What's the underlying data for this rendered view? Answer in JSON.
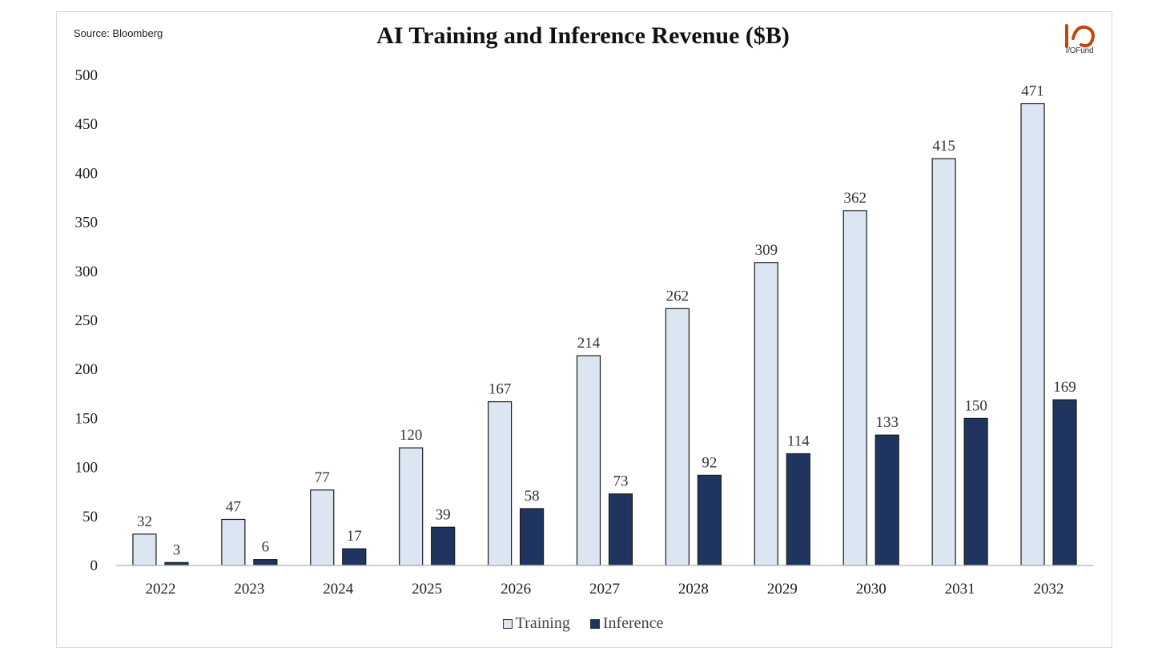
{
  "source": "Source: Bloomberg",
  "logo": {
    "icon": "io-logo-icon",
    "text": "I/OFund",
    "color": "#c0470f"
  },
  "colors": {
    "training": "#dce6f2",
    "inference": "#1f3560",
    "outline": "#1a1a1a",
    "axis": "#bfbfbf"
  },
  "chart_data": {
    "type": "bar",
    "title": "AI Training and Inference Revenue ($B)",
    "xlabel": "",
    "ylabel": "",
    "categories": [
      "2022",
      "2023",
      "2024",
      "2025",
      "2026",
      "2027",
      "2028",
      "2029",
      "2030",
      "2031",
      "2032"
    ],
    "series": [
      {
        "name": "Training",
        "values": [
          32,
          47,
          77,
          120,
          167,
          214,
          262,
          309,
          362,
          415,
          471
        ]
      },
      {
        "name": "Inference",
        "values": [
          3,
          6,
          17,
          39,
          58,
          73,
          92,
          114,
          133,
          150,
          169
        ]
      }
    ],
    "ylim": [
      0,
      500
    ],
    "yticks": [
      0,
      50,
      100,
      150,
      200,
      250,
      300,
      350,
      400,
      450,
      500
    ],
    "grid": false,
    "legend": "bottom-center",
    "data_labels": true
  }
}
